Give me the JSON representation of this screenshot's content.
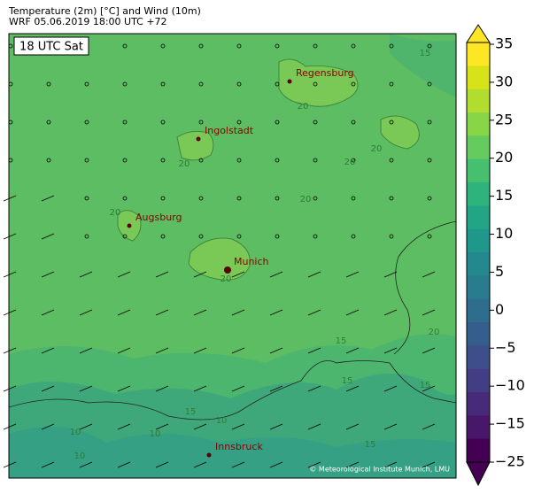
{
  "header": {
    "title_line1": "Temperature (2m) [°C] and Wind (10m)",
    "title_line2": "WRF 05.06.2019 18:00 UTC +72"
  },
  "map": {
    "time_label": "18 UTC Sat",
    "cities": [
      {
        "name": "Regensburg"
      },
      {
        "name": "Ingolstadt"
      },
      {
        "name": "Augsburg"
      },
      {
        "name": "Munich"
      },
      {
        "name": "Innsbruck"
      }
    ],
    "contour_labels": [
      "15",
      "20",
      "20",
      "20",
      "20",
      "20",
      "20",
      "20",
      "20",
      "15",
      "15",
      "15",
      "10",
      "10",
      "10",
      "15",
      "10",
      "15"
    ],
    "credit": "© Meteorological Institute Munich, LMU"
  },
  "colorbar": {
    "ticks": [
      35,
      30,
      25,
      20,
      15,
      10,
      5,
      0,
      {
        "value": -5,
        "label": "−5"
      },
      {
        "value": -10,
        "label": "−10"
      },
      {
        "value": -15,
        "label": "−15"
      },
      {
        "value": -25,
        "label": "−25"
      }
    ]
  }
}
